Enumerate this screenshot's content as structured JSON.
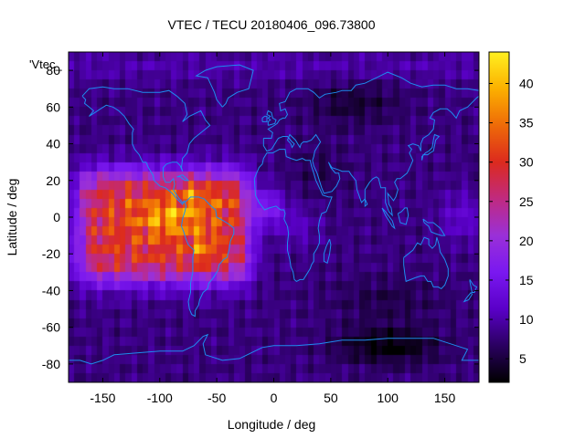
{
  "chart_data": {
    "type": "heatmap",
    "title": "VTEC / TECU 20180406_096.73800",
    "xlabel": "Longitude / deg",
    "ylabel": "Latitude / deg",
    "key_label": "'Vtec_",
    "xlim": [
      -180,
      180
    ],
    "ylim": [
      -90,
      90
    ],
    "x_ticks": [
      -150,
      -100,
      -50,
      0,
      50,
      100,
      150
    ],
    "y_ticks": [
      -80,
      -60,
      -40,
      -20,
      0,
      20,
      40,
      60,
      80
    ],
    "colorbar": {
      "range": [
        2,
        44
      ],
      "ticks": [
        5,
        10,
        15,
        20,
        25,
        30,
        35,
        40
      ],
      "colormap": [
        "#000000",
        "#2a0060",
        "#5a00c8",
        "#7a18f0",
        "#9a30d8",
        "#c02a80",
        "#dc2a1e",
        "#ee6a08",
        "#fcb000",
        "#fff020"
      ]
    },
    "features": {
      "background_tecu": 8,
      "equatorial_anomaly_peak_tecu": 42,
      "anomaly_center_lon": -80,
      "anomaly_center_lat": 0,
      "anomaly_lon_range": [
        -170,
        -20
      ],
      "anomaly_lat_range": [
        -35,
        27
      ],
      "low_tecu_regions": [
        "high southern latitudes 50E-160E",
        "northern Asia 40N-75N"
      ]
    },
    "overlay": "coastlines",
    "coastline_color": "#1e8cf0"
  }
}
